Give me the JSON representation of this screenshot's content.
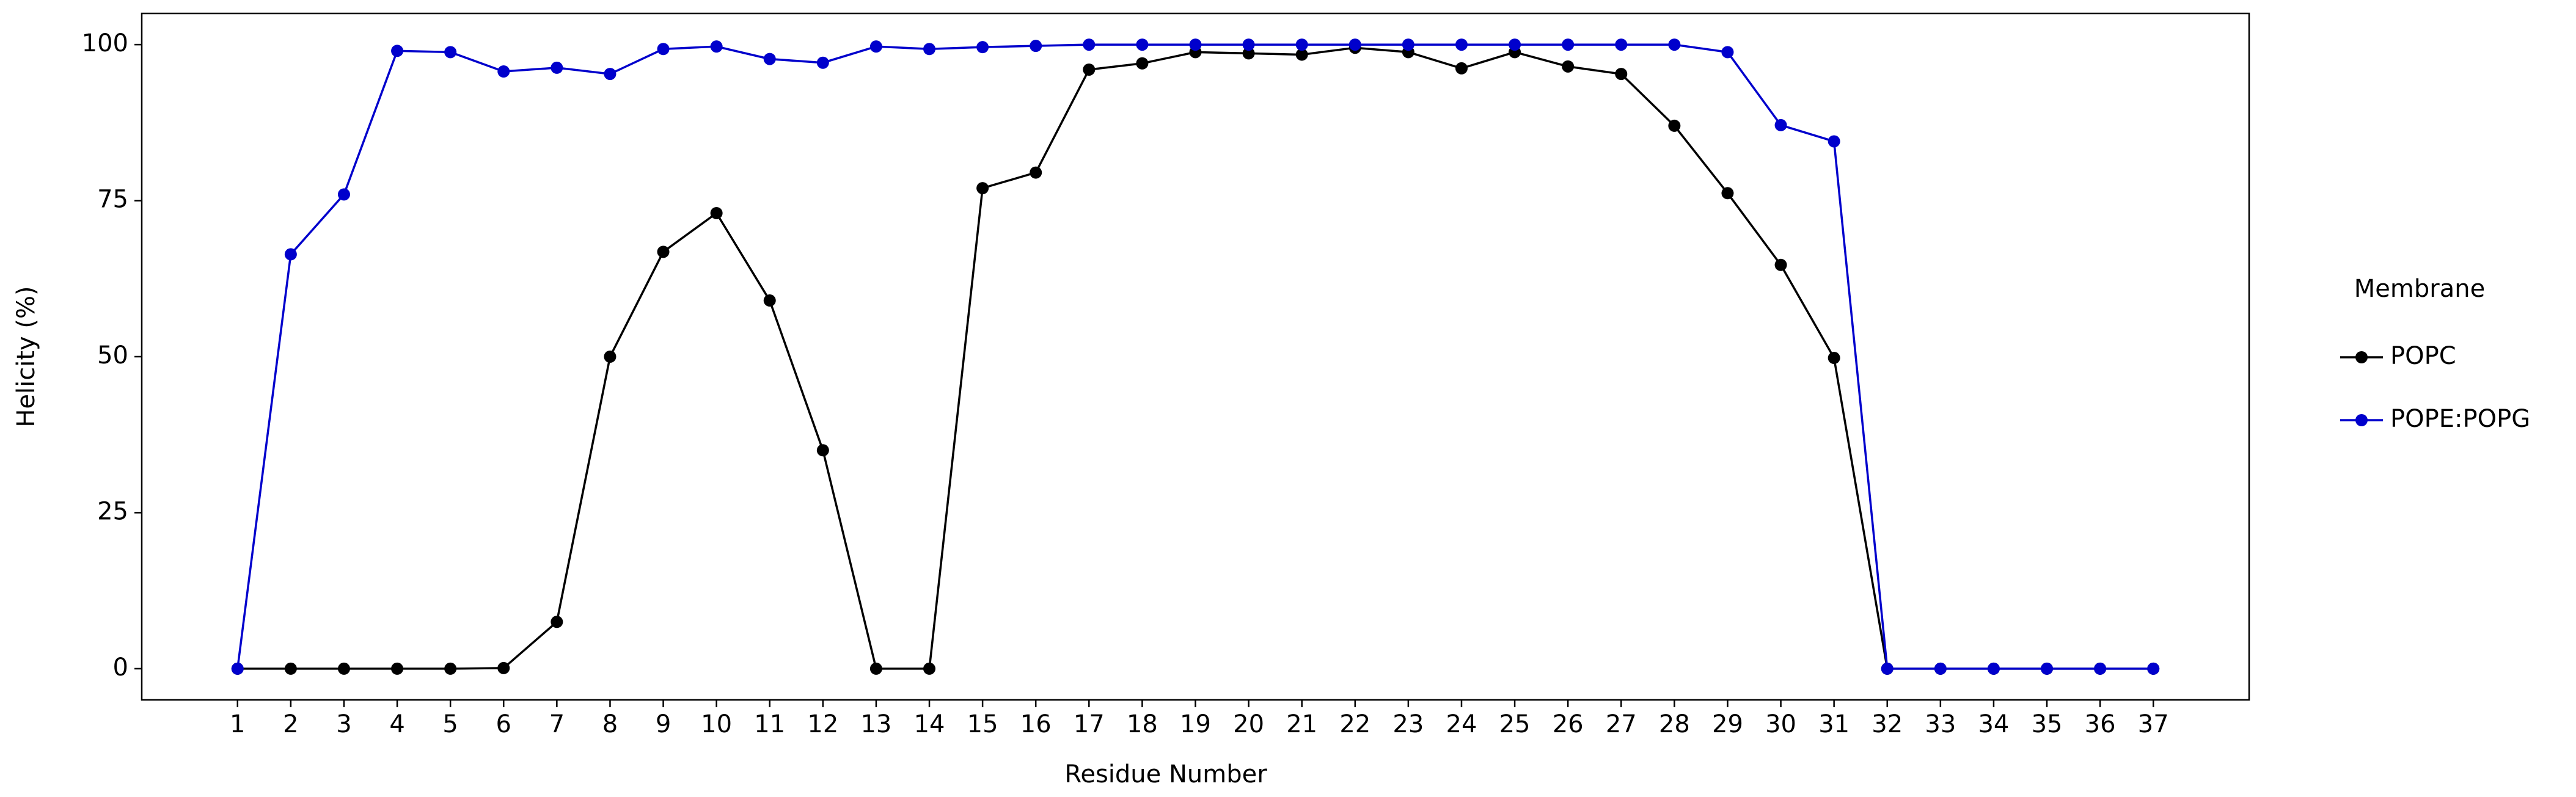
{
  "chart_data": {
    "type": "line",
    "xlabel": "Residue Number",
    "ylabel": "Helicity (%)",
    "x": [
      1,
      2,
      3,
      4,
      5,
      6,
      7,
      8,
      9,
      10,
      11,
      12,
      13,
      14,
      15,
      16,
      17,
      18,
      19,
      20,
      21,
      22,
      23,
      24,
      25,
      26,
      27,
      28,
      29,
      30,
      31,
      32,
      33,
      34,
      35,
      36,
      37
    ],
    "series": [
      {
        "name": "POPC",
        "color": "#000000",
        "values": [
          0,
          0,
          0,
          0,
          0,
          0.1,
          7.5,
          50,
          66.8,
          73,
          59,
          35,
          0,
          0,
          77,
          79.5,
          96,
          97,
          98.8,
          98.6,
          98.4,
          99.5,
          98.8,
          96.2,
          98.8,
          96.5,
          95.3,
          87,
          76.2,
          64.7,
          49.8,
          0,
          0,
          0,
          0,
          0,
          0
        ]
      },
      {
        "name": "POPE:POPG",
        "color": "#0000cc",
        "values": [
          0,
          66.4,
          76,
          99,
          98.8,
          95.7,
          96.3,
          95.3,
          99.3,
          99.7,
          97.7,
          97.1,
          99.7,
          99.3,
          99.6,
          99.8,
          100,
          100,
          100,
          100,
          100,
          100,
          100,
          100,
          100,
          100,
          100,
          100,
          98.8,
          87.1,
          84.5,
          0,
          0,
          0,
          0,
          0,
          0
        ]
      }
    ],
    "legend_title": "Membrane",
    "legend": "outside-right",
    "xlim": [
      -0.8,
      38.8
    ],
    "xticks": [
      1,
      2,
      3,
      4,
      5,
      6,
      7,
      8,
      9,
      10,
      11,
      12,
      13,
      14,
      15,
      16,
      17,
      18,
      19,
      20,
      21,
      22,
      23,
      24,
      25,
      26,
      27,
      28,
      29,
      30,
      31,
      32,
      33,
      34,
      35,
      36,
      37
    ],
    "ylim": [
      -5,
      105
    ],
    "yticks": [
      0,
      25,
      50,
      75,
      100
    ]
  }
}
